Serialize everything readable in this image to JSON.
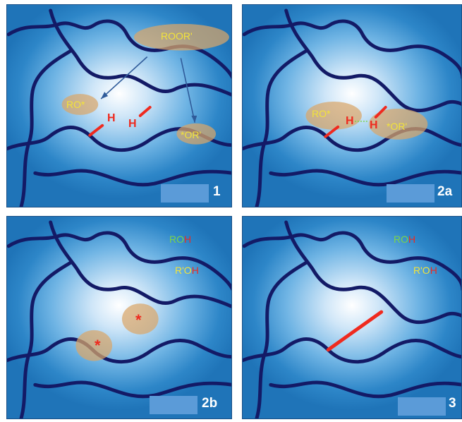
{
  "panels": {
    "p1": {
      "number": "1",
      "roor": "ROOR'",
      "ro": "RO*",
      "or": "*OR'",
      "h_left": "H",
      "h_right": "H"
    },
    "p2a": {
      "number": "2a",
      "ro": "RO*",
      "or": "*OR'",
      "h_left": "H",
      "h_right": "H"
    },
    "p2b": {
      "number": "2b",
      "roh_ro": "RO",
      "roh_h": "H",
      "rpoh_ro": "R'O",
      "rpoh_h": "H",
      "radical_mark": "*"
    },
    "p3": {
      "number": "3",
      "roh_ro": "RO",
      "roh_h": "H",
      "rpoh_ro": "R'O",
      "rpoh_h": "H"
    }
  },
  "colors": {
    "chain": "#131a66",
    "crosslink": "#ef2a1f",
    "radical_highlight": "#d9a66a",
    "label_box": "#5b9bd8"
  }
}
